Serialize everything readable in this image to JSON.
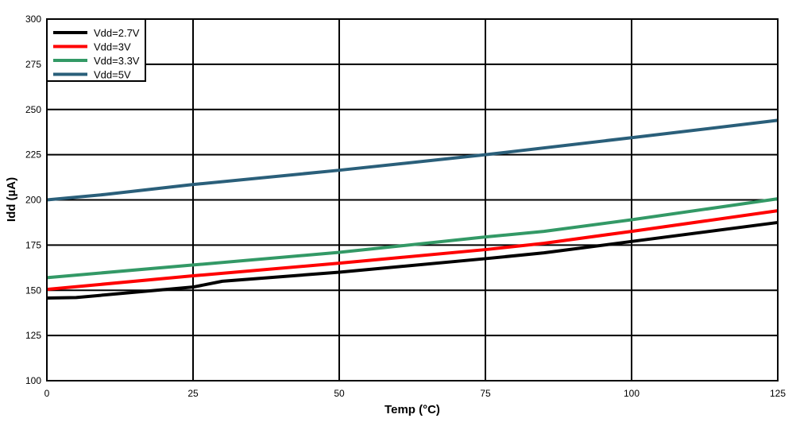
{
  "chart_data": {
    "type": "line",
    "title": "",
    "xlabel": "Temp (°C)",
    "ylabel": "Idd (µA)",
    "xlim": [
      0,
      125
    ],
    "ylim": [
      100,
      300
    ],
    "xticks": [
      0,
      25,
      50,
      75,
      100,
      125
    ],
    "yticks": [
      100,
      125,
      150,
      175,
      200,
      225,
      250,
      275,
      300
    ],
    "grid": true,
    "legend_position": "top-left",
    "series": [
      {
        "name": "Vdd=2.7V",
        "color": "#000000",
        "x": [
          0,
          5,
          25,
          30,
          50,
          75,
          85,
          100,
          125
        ],
        "y": [
          145.7,
          146,
          151.8,
          155,
          160,
          167.5,
          170.7,
          177,
          187.5
        ]
      },
      {
        "name": "Vdd=3V",
        "color": "#ff0000",
        "x": [
          0,
          25,
          50,
          75,
          85,
          100,
          125
        ],
        "y": [
          150.5,
          158,
          165,
          172.5,
          176,
          182.6,
          194
        ]
      },
      {
        "name": "Vdd=3.3V",
        "color": "#339966",
        "x": [
          0,
          25,
          50,
          75,
          85,
          100,
          125
        ],
        "y": [
          157,
          164,
          171,
          179.5,
          182.6,
          189,
          200.6
        ]
      },
      {
        "name": "Vdd=5V",
        "color": "#2a5f7a",
        "x": [
          0,
          10,
          25,
          50,
          75,
          100,
          125
        ],
        "y": [
          200,
          203,
          208.5,
          216.4,
          225,
          234.4,
          244
        ]
      }
    ]
  }
}
